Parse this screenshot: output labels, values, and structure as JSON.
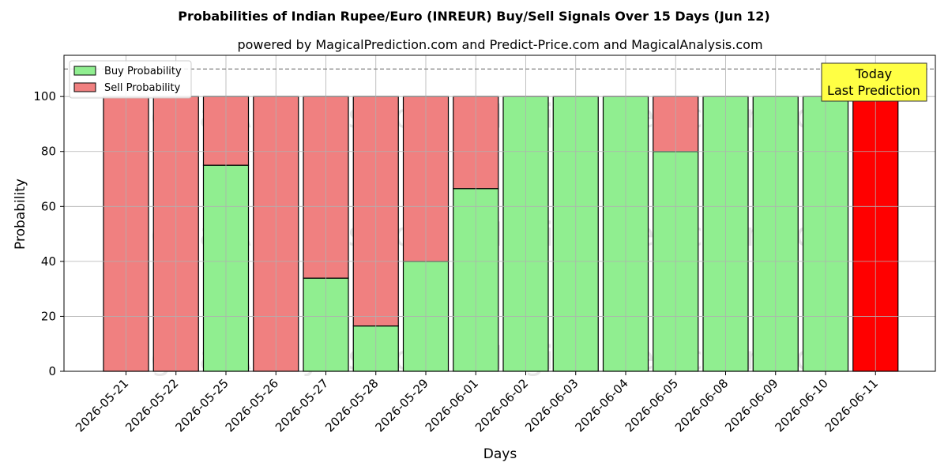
{
  "chart_data": {
    "type": "bar",
    "stacked": true,
    "title": "Probabilities of Indian Rupee/Euro (INREUR) Buy/Sell Signals Over 15 Days (Jun 12)",
    "subtitle": "powered by MagicalPrediction.com and Predict-Price.com and MagicalAnalysis.com",
    "xlabel": "Days",
    "ylabel": "Probability",
    "ylim": [
      0,
      115
    ],
    "yticks": [
      0,
      20,
      40,
      60,
      80,
      100
    ],
    "reference_line": 110,
    "grid": true,
    "legend_position": "top-left",
    "categories": [
      "2026-05-21",
      "2026-05-22",
      "2026-05-25",
      "2026-05-26",
      "2026-05-27",
      "2026-05-28",
      "2026-05-29",
      "2026-06-01",
      "2026-06-02",
      "2026-06-03",
      "2026-06-04",
      "2026-06-05",
      "2026-06-08",
      "2026-06-09",
      "2026-06-10",
      "2026-06-11"
    ],
    "series": [
      {
        "name": "Buy Probability",
        "color": "#90ee90",
        "values": [
          0,
          0,
          75,
          0,
          33.9,
          16.5,
          40,
          66.5,
          100,
          100,
          100,
          80,
          100,
          100,
          100,
          0
        ]
      },
      {
        "name": "Sell Probability",
        "color": "#f08080",
        "values": [
          100,
          100,
          25,
          100,
          66.1,
          83.5,
          60,
          33.5,
          0,
          0,
          0,
          20,
          0,
          0,
          0,
          100
        ]
      }
    ],
    "highlight": {
      "index": 15,
      "color": "#ff0000"
    },
    "annotation": {
      "lines": [
        "Today",
        "Last Prediction"
      ],
      "background": "#ffff44"
    },
    "watermarks": [
      "MagicalAnalysis.com",
      "MagicalPrediction.com"
    ]
  }
}
